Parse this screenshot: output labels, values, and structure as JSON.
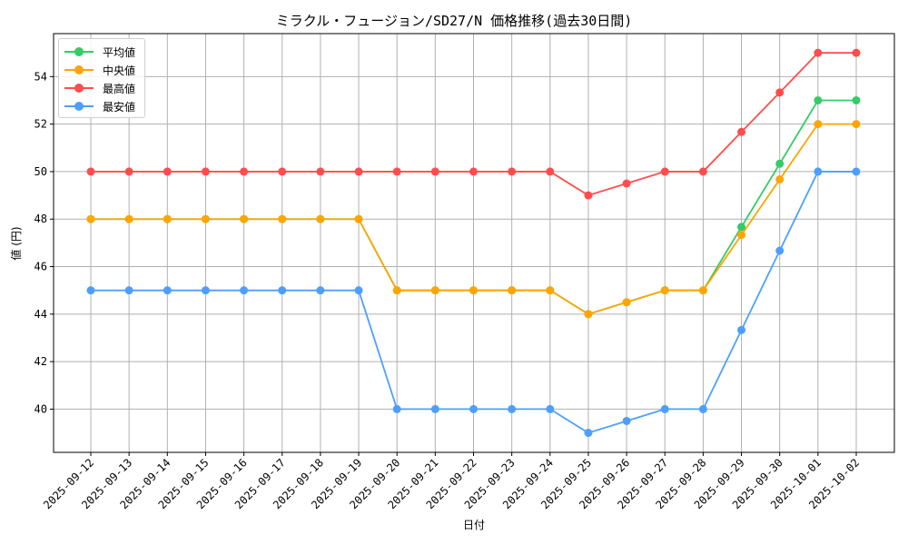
{
  "chart_data": {
    "type": "line",
    "title": "ミラクル・フュージョン/SD27/N 価格推移(過去30日間)",
    "xlabel": "日付",
    "ylabel": "値 (円)",
    "ylim": [
      38.18,
      55.81
    ],
    "yticks": [
      40,
      42,
      44,
      46,
      48,
      50,
      52,
      54
    ],
    "grid": true,
    "legend_position": "upper left",
    "x": [
      "2025-09-12",
      "2025-09-13",
      "2025-09-14",
      "2025-09-15",
      "2025-09-16",
      "2025-09-17",
      "2025-09-18",
      "2025-09-19",
      "2025-09-20",
      "2025-09-21",
      "2025-09-22",
      "2025-09-23",
      "2025-09-24",
      "2025-09-25",
      "2025-09-26",
      "2025-09-27",
      "2025-09-28",
      "2025-09-29",
      "2025-09-30",
      "2025-10-01",
      "2025-10-02"
    ],
    "series": [
      {
        "name": "平均値",
        "color": "#33cc66",
        "values": [
          48,
          48,
          48,
          48,
          48,
          48,
          48,
          48,
          45,
          45,
          45,
          45,
          45,
          44,
          44.5,
          45,
          45,
          47.67,
          50.33,
          53,
          53
        ]
      },
      {
        "name": "中央値",
        "color": "#ffa500",
        "values": [
          48,
          48,
          48,
          48,
          48,
          48,
          48,
          48,
          45,
          45,
          45,
          45,
          45,
          44,
          44.5,
          45,
          45,
          47.33,
          49.67,
          52,
          52
        ]
      },
      {
        "name": "最高値",
        "color": "#ff4d4d",
        "values": [
          50,
          50,
          50,
          50,
          50,
          50,
          50,
          50,
          50,
          50,
          50,
          50,
          50,
          49,
          49.5,
          50,
          50,
          51.67,
          53.33,
          55,
          55
        ]
      },
      {
        "name": "最安値",
        "color": "#4d9fff",
        "values": [
          45,
          45,
          45,
          45,
          45,
          45,
          45,
          45,
          40,
          40,
          40,
          40,
          40,
          39,
          39.5,
          40,
          40,
          43.33,
          46.67,
          50,
          50
        ]
      }
    ]
  }
}
